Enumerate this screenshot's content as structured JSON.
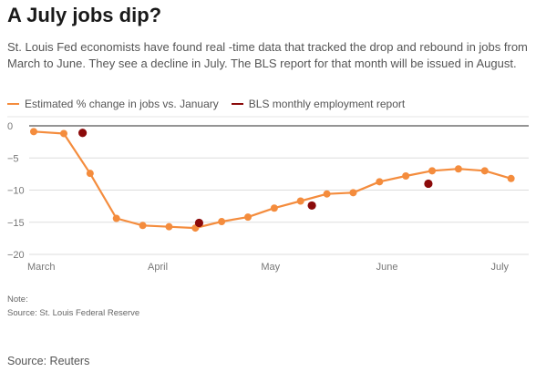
{
  "header": {
    "title": "A July jobs dip?",
    "subtitle": "St. Louis Fed economists have found real -time data that tracked the drop and rebound in jobs from March to June. They see a decline in July. The BLS report for that month will be issued in August."
  },
  "legend": {
    "estimated": "Estimated % change in jobs vs. January",
    "bls": "BLS monthly employment report"
  },
  "footer": {
    "note_label": "Note:",
    "source_line": "Source: St. Louis Federal Reserve",
    "credit": "Source: Reuters"
  },
  "colors": {
    "estimated": "#f48c3d",
    "bls": "#8b0a0a",
    "grid": "#dddddd",
    "baseline": "#555555"
  },
  "chart_data": {
    "type": "line",
    "title": "A July jobs dip?",
    "xlabel": "",
    "ylabel": "",
    "x_axis": "date (2020)",
    "x_tick_labels": [
      "March",
      "April",
      "May",
      "June",
      "July"
    ],
    "x_tick_dates": [
      "2020-03-01",
      "2020-04-01",
      "2020-05-01",
      "2020-06-01",
      "2020-07-01"
    ],
    "xlim": [
      "2020-02-28",
      "2020-07-07"
    ],
    "y_ticks": [
      0,
      -5,
      -10,
      -15,
      -20
    ],
    "ylim": [
      -20,
      0
    ],
    "grid": true,
    "legend_position": "top-left",
    "series": [
      {
        "name": "Estimated % change in jobs vs. January",
        "kind": "line-with-markers",
        "points": [
          {
            "x": "2020-02-28",
            "y": -0.9
          },
          {
            "x": "2020-03-07",
            "y": -1.2
          },
          {
            "x": "2020-03-14",
            "y": -7.4
          },
          {
            "x": "2020-03-21",
            "y": -14.4
          },
          {
            "x": "2020-03-28",
            "y": -15.5
          },
          {
            "x": "2020-04-04",
            "y": -15.7
          },
          {
            "x": "2020-04-11",
            "y": -15.9
          },
          {
            "x": "2020-04-18",
            "y": -14.9
          },
          {
            "x": "2020-04-25",
            "y": -14.2
          },
          {
            "x": "2020-05-02",
            "y": -12.8
          },
          {
            "x": "2020-05-09",
            "y": -11.7
          },
          {
            "x": "2020-05-16",
            "y": -10.6
          },
          {
            "x": "2020-05-23",
            "y": -10.4
          },
          {
            "x": "2020-05-30",
            "y": -8.7
          },
          {
            "x": "2020-06-06",
            "y": -7.8
          },
          {
            "x": "2020-06-13",
            "y": -7.0
          },
          {
            "x": "2020-06-20",
            "y": -6.7
          },
          {
            "x": "2020-06-27",
            "y": -7.0
          },
          {
            "x": "2020-07-04",
            "y": -8.2
          }
        ]
      },
      {
        "name": "BLS monthly employment report",
        "kind": "markers",
        "points": [
          {
            "x": "2020-03-12",
            "y": -1.1
          },
          {
            "x": "2020-04-12",
            "y": -15.1
          },
          {
            "x": "2020-05-12",
            "y": -12.4
          },
          {
            "x": "2020-06-12",
            "y": -9.0
          }
        ]
      }
    ]
  }
}
